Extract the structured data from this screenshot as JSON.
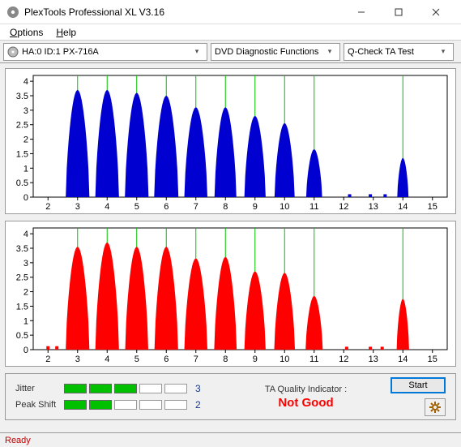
{
  "window": {
    "title": "PlexTools Professional XL V3.16"
  },
  "menu": {
    "options": "Options",
    "help": "Help"
  },
  "toolbar": {
    "device": "HA:0 ID:1   PX-716A",
    "function": "DVD Diagnostic Functions",
    "test": "Q-Check TA Test"
  },
  "chart_top": {
    "type": "histogram-peaks",
    "series_color": "#0000d0",
    "grid_color": "#00c000",
    "axis_color": "#000000",
    "background_color": "#ffffff",
    "xlim": [
      1.5,
      15.5
    ],
    "ylim": [
      0,
      4.2
    ],
    "xticks": [
      2,
      3,
      4,
      5,
      6,
      7,
      8,
      9,
      10,
      11,
      12,
      13,
      14,
      15
    ],
    "yticks": [
      0,
      0.5,
      1,
      1.5,
      2,
      2.5,
      3,
      3.5,
      4
    ],
    "vlines": [
      3,
      4,
      5,
      6,
      7,
      8,
      9,
      10,
      11,
      14
    ],
    "peaks": [
      {
        "x": 3,
        "h": 3.7,
        "w": 0.8
      },
      {
        "x": 4,
        "h": 3.7,
        "w": 0.8
      },
      {
        "x": 5,
        "h": 3.6,
        "w": 0.8
      },
      {
        "x": 6,
        "h": 3.5,
        "w": 0.82
      },
      {
        "x": 7,
        "h": 3.1,
        "w": 0.78
      },
      {
        "x": 8,
        "h": 3.1,
        "w": 0.74
      },
      {
        "x": 9,
        "h": 2.8,
        "w": 0.72
      },
      {
        "x": 10,
        "h": 2.55,
        "w": 0.68
      },
      {
        "x": 11,
        "h": 1.65,
        "w": 0.54
      },
      {
        "x": 14,
        "h": 1.35,
        "w": 0.38
      }
    ],
    "stubs": [
      {
        "x": 12.2,
        "h": 0.1
      },
      {
        "x": 12.9,
        "h": 0.1
      },
      {
        "x": 13.4,
        "h": 0.1
      }
    ]
  },
  "chart_bottom": {
    "type": "histogram-peaks",
    "series_color": "#ff0000",
    "grid_color": "#00c000",
    "axis_color": "#000000",
    "background_color": "#ffffff",
    "xlim": [
      1.5,
      15.5
    ],
    "ylim": [
      0,
      4.2
    ],
    "xticks": [
      2,
      3,
      4,
      5,
      6,
      7,
      8,
      9,
      10,
      11,
      12,
      13,
      14,
      15
    ],
    "yticks": [
      0,
      0.5,
      1,
      1.5,
      2,
      2.5,
      3,
      3.5,
      4
    ],
    "vlines": [
      3,
      4,
      5,
      6,
      7,
      8,
      9,
      10,
      11,
      14
    ],
    "peaks": [
      {
        "x": 3,
        "h": 3.55,
        "w": 0.8
      },
      {
        "x": 4,
        "h": 3.7,
        "w": 0.8
      },
      {
        "x": 5,
        "h": 3.55,
        "w": 0.78
      },
      {
        "x": 6,
        "h": 3.55,
        "w": 0.8
      },
      {
        "x": 7,
        "h": 3.15,
        "w": 0.78
      },
      {
        "x": 8,
        "h": 3.2,
        "w": 0.76
      },
      {
        "x": 9,
        "h": 2.7,
        "w": 0.72
      },
      {
        "x": 10,
        "h": 2.65,
        "w": 0.7
      },
      {
        "x": 11,
        "h": 1.85,
        "w": 0.58
      },
      {
        "x": 14,
        "h": 1.75,
        "w": 0.42
      }
    ],
    "stubs": [
      {
        "x": 2.0,
        "h": 0.12
      },
      {
        "x": 2.3,
        "h": 0.12
      },
      {
        "x": 12.1,
        "h": 0.1
      },
      {
        "x": 12.9,
        "h": 0.1
      },
      {
        "x": 13.3,
        "h": 0.1
      }
    ]
  },
  "meters": {
    "jitter": {
      "label": "Jitter",
      "filled": 3,
      "total": 5,
      "value": "3",
      "value_color": "#1a3a8a",
      "fill_color": "#00c000"
    },
    "peak_shift": {
      "label": "Peak Shift",
      "filled": 2,
      "total": 5,
      "value": "2",
      "value_color": "#1a3a8a",
      "fill_color": "#00c000"
    }
  },
  "indicator": {
    "label": "TA Quality Indicator :",
    "value": "Not Good",
    "value_color": "#ff0000"
  },
  "buttons": {
    "start": "Start"
  },
  "status": {
    "text": "Ready",
    "color": "#c00000"
  }
}
